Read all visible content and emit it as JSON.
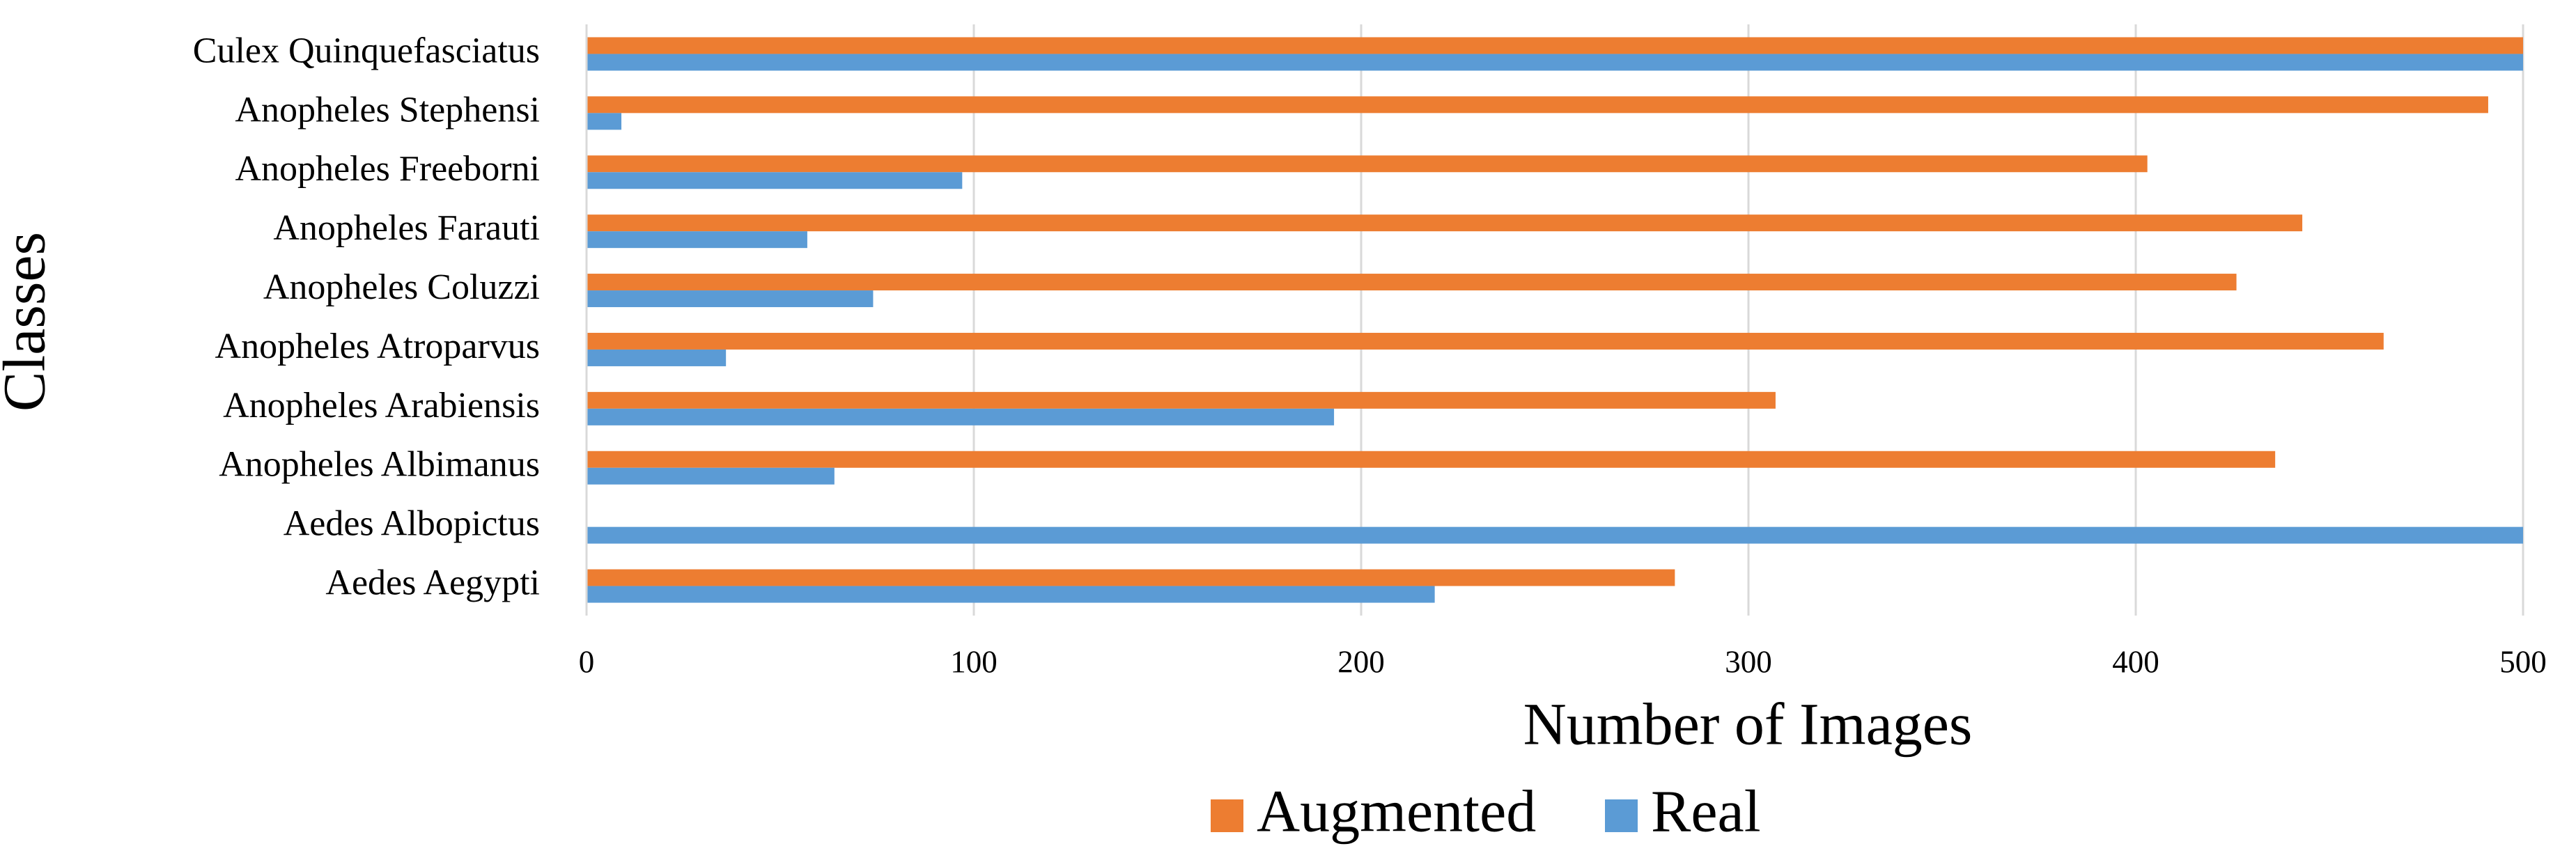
{
  "chart_data": {
    "type": "hbar",
    "x_label": "Number of Images",
    "y_label": "Classes",
    "categories": [
      "Culex Quinquefasciatus",
      "Anopheles Stephensi",
      "Anopheles Freeborni",
      "Anopheles Farauti",
      "Anopheles Coluzzi",
      "Anopheles Atroparvus",
      "Anopheles Arabiensis",
      "Anopheles Albimanus",
      "Aedes Albopictus",
      "Aedes Aegypti"
    ],
    "series": [
      {
        "name": "Augmented",
        "color": "#ed7d31",
        "values": [
          500,
          491,
          403,
          443,
          426,
          464,
          307,
          436,
          0,
          281
        ]
      },
      {
        "name": "Real",
        "color": "#5b9bd5",
        "values": [
          500,
          9,
          97,
          57,
          74,
          36,
          193,
          64,
          500,
          219
        ]
      }
    ],
    "xlim": [
      0,
      500
    ],
    "xticks": [
      0,
      100,
      200,
      300,
      400,
      500
    ],
    "grid": true,
    "legend": "bottom"
  }
}
